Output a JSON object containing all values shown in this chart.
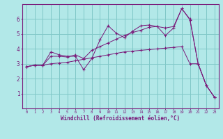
{
  "background_color": "#b2e8e8",
  "grid_color": "#80c8c8",
  "line_color": "#7a1a7a",
  "xlabel": "Windchill (Refroidissement éolien,°C)",
  "xlim": [
    -0.5,
    23.5
  ],
  "ylim": [
    0,
    7
  ],
  "yticks": [
    1,
    2,
    3,
    4,
    5,
    6
  ],
  "xtick_labels": [
    "0",
    "1",
    "2",
    "3",
    "4",
    "5",
    "6",
    "7",
    "8",
    "9",
    "10",
    "11",
    "12",
    "13",
    "14",
    "15",
    "16",
    "17",
    "18",
    "19",
    "20",
    "21",
    "22",
    "23"
  ],
  "series": [
    [
      2.8,
      2.9,
      2.9,
      3.8,
      3.6,
      3.5,
      3.5,
      2.6,
      3.35,
      4.6,
      5.55,
      5.05,
      4.75,
      5.2,
      5.55,
      5.6,
      5.5,
      4.9,
      5.4,
      6.7,
      6.0,
      3.0,
      1.55,
      0.75
    ],
    [
      2.8,
      2.9,
      2.9,
      3.5,
      3.5,
      3.45,
      3.6,
      3.35,
      3.9,
      4.15,
      4.4,
      4.65,
      4.9,
      5.1,
      5.25,
      5.45,
      5.5,
      5.4,
      5.5,
      6.7,
      5.95,
      3.0,
      1.55,
      0.75
    ],
    [
      2.8,
      2.9,
      2.9,
      3.0,
      3.05,
      3.1,
      3.2,
      3.3,
      3.4,
      3.5,
      3.6,
      3.7,
      3.8,
      3.85,
      3.9,
      3.95,
      4.0,
      4.05,
      4.1,
      4.15,
      3.0,
      3.0,
      1.55,
      0.75
    ]
  ]
}
